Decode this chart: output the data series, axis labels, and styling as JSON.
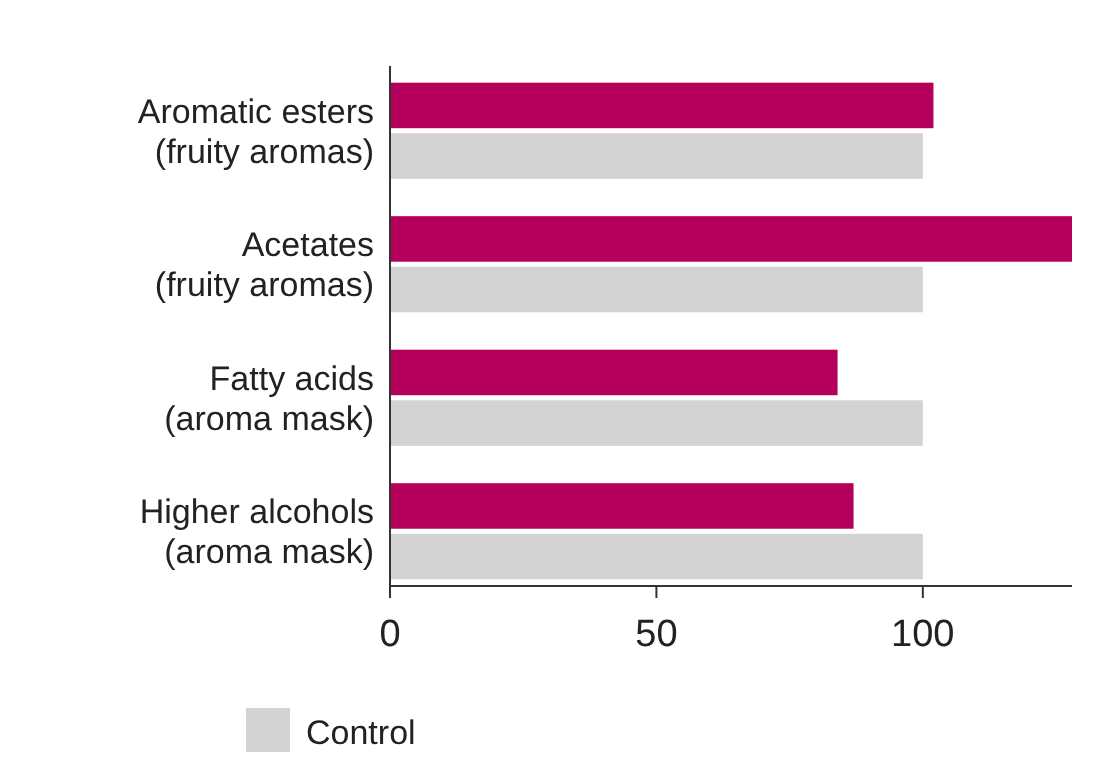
{
  "chart_data": {
    "type": "bar",
    "orientation": "horizontal",
    "categories": [
      "Aromatic esters\n(fruity aromas)",
      "Acetates\n(fruity aromas)",
      "Fatty acids\n(aroma mask)",
      "Higher alcohols\n(aroma mask)"
    ],
    "series": [
      {
        "color": "#b5005b",
        "values": [
          102,
          128,
          84,
          87
        ]
      },
      {
        "name": "Control",
        "color": "#d3d3d3",
        "values": [
          100,
          100,
          100,
          100
        ]
      }
    ],
    "xlim": [
      0,
      128
    ],
    "xticks": [
      0,
      50,
      100
    ],
    "grid": false,
    "legend": "bottom"
  }
}
